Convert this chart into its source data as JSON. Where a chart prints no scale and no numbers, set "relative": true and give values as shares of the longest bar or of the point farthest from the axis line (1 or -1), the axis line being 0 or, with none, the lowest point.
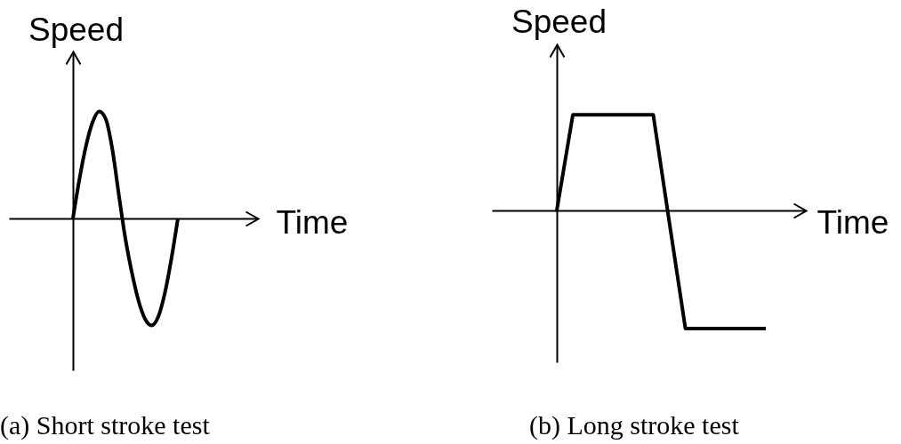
{
  "chart_data": [
    {
      "type": "line",
      "title": "(a) Short stroke test",
      "xlabel": "Time",
      "ylabel": "Speed",
      "relative": true,
      "categories": [
        null,
        null,
        null,
        null,
        null,
        null,
        null,
        null,
        null,
        null,
        null,
        null,
        null,
        null,
        null,
        null,
        null
      ],
      "values": [
        0,
        0.37,
        0.68,
        0.9,
        1,
        0.93,
        0.65,
        0.22,
        -0.19,
        -0.51,
        -0.77,
        -0.94,
        -1,
        -0.92,
        -0.7,
        -0.38,
        0
      ],
      "color": "#000000"
    },
    {
      "type": "line",
      "title": "(b) Long stroke test",
      "xlabel": "Time",
      "ylabel": "Speed",
      "relative": true,
      "categories": [
        null,
        null,
        null,
        null,
        null,
        null,
        null,
        null,
        null,
        null,
        null,
        null,
        null,
        null
      ],
      "values": [
        0,
        0.81,
        0.81,
        0.81,
        0.81,
        0.81,
        0.81,
        -0.1,
        -1,
        -1,
        -1,
        -1,
        -1,
        -1
      ],
      "color": "#000000"
    }
  ]
}
